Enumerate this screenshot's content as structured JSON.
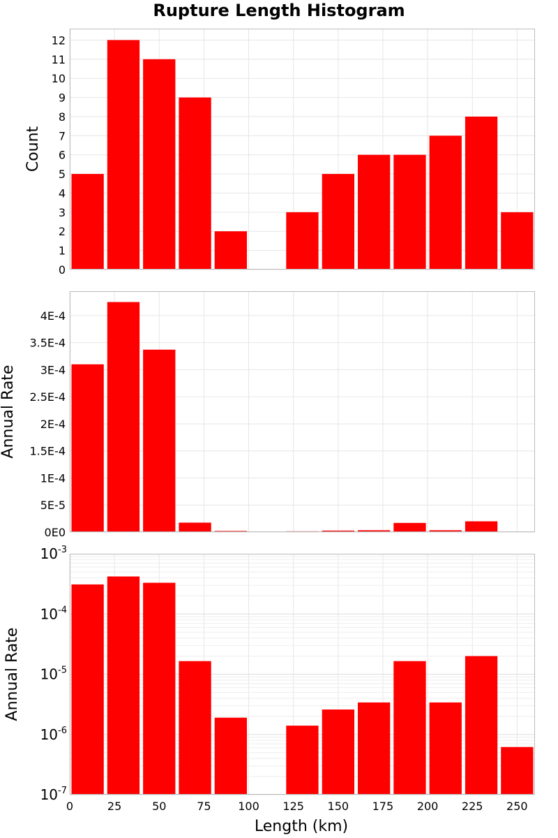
{
  "chart_data": [
    {
      "type": "bar",
      "title": "Rupture Length Histogram",
      "xlabel": "",
      "ylabel": "Count",
      "x": [
        10,
        30,
        50,
        70,
        90,
        110,
        130,
        150,
        170,
        190,
        210,
        230,
        250
      ],
      "values": [
        5,
        12,
        11,
        9,
        2,
        0,
        3,
        5,
        6,
        6,
        7,
        8,
        3
      ],
      "xlim": [
        0,
        260
      ],
      "ylim": [
        0,
        12.6
      ],
      "yticks": [
        0,
        1,
        2,
        3,
        4,
        5,
        6,
        7,
        8,
        9,
        10,
        11,
        12
      ],
      "ytick_labels": [
        "0",
        "1",
        "2",
        "3",
        "4",
        "5",
        "6",
        "7",
        "8",
        "9",
        "10",
        "11",
        "12"
      ],
      "grid": true,
      "color": "#ff0000"
    },
    {
      "type": "bar",
      "xlabel": "",
      "ylabel": "Annual Rate",
      "x": [
        10,
        30,
        50,
        70,
        90,
        110,
        130,
        150,
        170,
        190,
        210,
        230,
        250
      ],
      "values": [
        0.00031,
        0.000425,
        0.000337,
        1.75e-05,
        2.2e-06,
        0,
        1.5e-06,
        2.8e-06,
        3.5e-06,
        1.7e-05,
        3.5e-06,
        2e-05,
        6e-07
      ],
      "xlim": [
        0,
        260
      ],
      "ylim": [
        0,
        0.000445
      ],
      "yticks": [
        0,
        5e-05,
        0.0001,
        0.00015,
        0.0002,
        0.00025,
        0.0003,
        0.00035,
        0.0004
      ],
      "ytick_labels": [
        "0E0",
        "5E-5",
        "1E-4",
        "1.5E-4",
        "2E-4",
        "2.5E-4",
        "3E-4",
        "3.5E-4",
        "4E-4"
      ],
      "grid": true,
      "color": "#ff0000"
    },
    {
      "type": "bar",
      "xlabel": "Length (km)",
      "ylabel": "Annual Rate",
      "yscale": "log",
      "x": [
        10,
        30,
        50,
        70,
        90,
        110,
        130,
        150,
        170,
        190,
        210,
        230,
        250
      ],
      "values": [
        0.00031,
        0.00042,
        0.00033,
        1.65e-05,
        1.9e-06,
        0,
        1.4e-06,
        2.6e-06,
        3.4e-06,
        1.65e-05,
        3.4e-06,
        2e-05,
        6.2e-07
      ],
      "xlim": [
        0,
        260
      ],
      "ylim": [
        1e-07,
        0.001
      ],
      "yticks": [
        1e-07,
        1e-06,
        1e-05,
        0.0001,
        0.001
      ],
      "ytick_labels": [
        {
          "base": "10",
          "exp": "-7"
        },
        {
          "base": "10",
          "exp": "-6"
        },
        {
          "base": "10",
          "exp": "-5"
        },
        {
          "base": "10",
          "exp": "-4"
        },
        {
          "base": "10",
          "exp": "-3"
        }
      ],
      "xticks": [
        0,
        25,
        50,
        75,
        100,
        125,
        150,
        175,
        200,
        225,
        250
      ],
      "xtick_labels": [
        "0",
        "25",
        "50",
        "75",
        "100",
        "125",
        "150",
        "175",
        "200",
        "225",
        "250"
      ],
      "grid": true,
      "color": "#ff0000"
    }
  ]
}
